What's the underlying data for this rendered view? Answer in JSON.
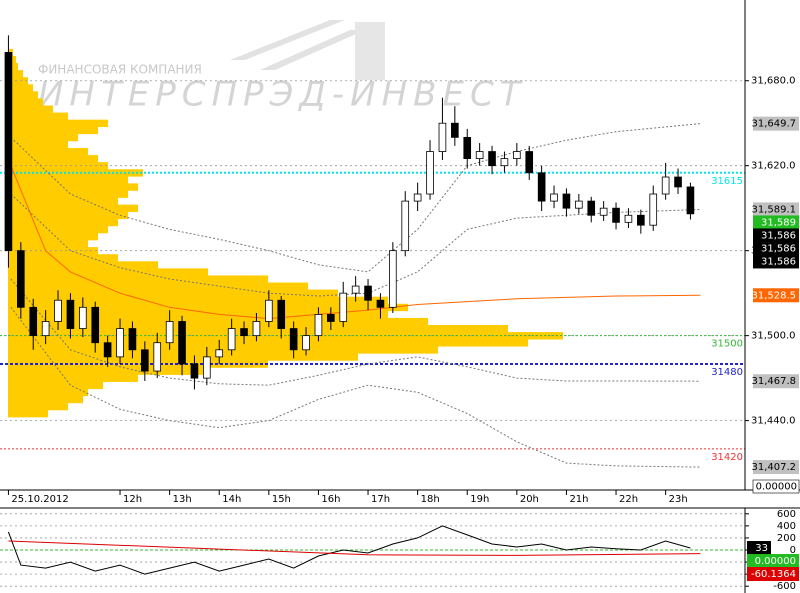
{
  "chart_data": [
    {
      "type": "candlestick",
      "watermark": [
        "ФИНАНСОВАЯ КОМПАНИЯ",
        "ИНТЕРСПРЭД-ИНВЕСТ"
      ],
      "xlim": [
        9.58,
        24.6
      ],
      "xticks": [
        {
          "value": 9.75,
          "label": "25.10.2012"
        },
        {
          "value": 12,
          "label": "12h"
        },
        {
          "value": 13,
          "label": "13h"
        },
        {
          "value": 14,
          "label": "14h"
        },
        {
          "value": 15,
          "label": "15h"
        },
        {
          "value": 16,
          "label": "16h"
        },
        {
          "value": 17,
          "label": "17h"
        },
        {
          "value": 18,
          "label": "18h"
        },
        {
          "value": 19,
          "label": "19h"
        },
        {
          "value": 20,
          "label": "20h"
        },
        {
          "value": 21,
          "label": "21h"
        },
        {
          "value": 22,
          "label": "22h"
        },
        {
          "value": 23,
          "label": "23h"
        }
      ],
      "ylim": [
        31391,
        31737
      ],
      "yticks": [
        {
          "value": 31440,
          "label": "31,440.0"
        },
        {
          "value": 31500,
          "label": "31,500.0"
        },
        {
          "value": 31560,
          "label": "31,560.0"
        },
        {
          "value": 31620,
          "label": "31,620.0"
        },
        {
          "value": 31680,
          "label": "31,680.0"
        }
      ],
      "grid": true,
      "x": [
        9.75,
        10,
        10.25,
        10.5,
        10.75,
        11,
        11.25,
        11.5,
        11.75,
        12,
        12.25,
        12.5,
        12.75,
        13,
        13.25,
        13.5,
        13.75,
        14,
        14.25,
        14.5,
        14.75,
        15,
        15.25,
        15.5,
        15.75,
        16,
        16.25,
        16.5,
        16.75,
        17,
        17.25,
        17.5,
        17.75,
        18,
        18.25,
        18.5,
        18.75,
        19,
        19.25,
        19.5,
        19.75,
        20,
        20.25,
        20.5,
        20.75,
        21,
        21.25,
        21.5,
        21.75,
        22,
        22.25,
        22.5,
        22.75,
        23,
        23.25,
        23.5
      ],
      "ohlc": [
        [
          31700,
          31712,
          31548,
          31560
        ],
        [
          31560,
          31566,
          31512,
          31520
        ],
        [
          31520,
          31526,
          31490,
          31500
        ],
        [
          31500,
          31518,
          31494,
          31510
        ],
        [
          31510,
          31532,
          31504,
          31525
        ],
        [
          31525,
          31530,
          31498,
          31505
        ],
        [
          31505,
          31527,
          31499,
          31520
        ],
        [
          31520,
          31524,
          31488,
          31495
        ],
        [
          31495,
          31500,
          31478,
          31485
        ],
        [
          31485,
          31512,
          31480,
          31505
        ],
        [
          31505,
          31510,
          31484,
          31490
        ],
        [
          31490,
          31496,
          31468,
          31475
        ],
        [
          31475,
          31502,
          31470,
          31495
        ],
        [
          31495,
          31518,
          31490,
          31510
        ],
        [
          31510,
          31514,
          31472,
          31480
        ],
        [
          31480,
          31486,
          31462,
          31470
        ],
        [
          31470,
          31492,
          31465,
          31485
        ],
        [
          31485,
          31497,
          31480,
          31490
        ],
        [
          31490,
          31512,
          31486,
          31505
        ],
        [
          31505,
          31510,
          31494,
          31500
        ],
        [
          31500,
          31516,
          31496,
          31510
        ],
        [
          31510,
          31532,
          31506,
          31525
        ],
        [
          31525,
          31528,
          31498,
          31505
        ],
        [
          31505,
          31510,
          31484,
          31490
        ],
        [
          31490,
          31506,
          31486,
          31500
        ],
        [
          31500,
          31520,
          31496,
          31515
        ],
        [
          31515,
          31520,
          31504,
          31510
        ],
        [
          31510,
          31538,
          31506,
          31530
        ],
        [
          31530,
          31542,
          31524,
          31535
        ],
        [
          31535,
          31540,
          31518,
          31525
        ],
        [
          31525,
          31530,
          31512,
          31520
        ],
        [
          31520,
          31566,
          31516,
          31560
        ],
        [
          31560,
          31602,
          31556,
          31595
        ],
        [
          31595,
          31608,
          31588,
          31600
        ],
        [
          31600,
          31638,
          31596,
          31630
        ],
        [
          31630,
          31668,
          31624,
          31650
        ],
        [
          31650,
          31662,
          31634,
          31640
        ],
        [
          31640,
          31646,
          31618,
          31625
        ],
        [
          31625,
          31636,
          31620,
          31630
        ],
        [
          31630,
          31634,
          31614,
          31620
        ],
        [
          31620,
          31630,
          31615,
          31625
        ],
        [
          31625,
          31636,
          31620,
          31630
        ],
        [
          31630,
          31634,
          31610,
          31615
        ],
        [
          31615,
          31620,
          31588,
          31595
        ],
        [
          31595,
          31606,
          31590,
          31600
        ],
        [
          31600,
          31604,
          31584,
          31590
        ],
        [
          31590,
          31600,
          31586,
          31595
        ],
        [
          31595,
          31598,
          31580,
          31585
        ],
        [
          31585,
          31595,
          31581,
          31590
        ],
        [
          31590,
          31594,
          31575,
          31580
        ],
        [
          31580,
          31590,
          31576,
          31585
        ],
        [
          31585,
          31589,
          31572,
          31578
        ],
        [
          31578,
          31606,
          31574,
          31600
        ],
        [
          31600,
          31622,
          31596,
          31612
        ],
        [
          31612,
          31618,
          31600,
          31605
        ],
        [
          31605,
          31608,
          31582,
          31586
        ]
      ],
      "up_color": "#ffffff",
      "down_color": "#000000",
      "volume_profile": {
        "color": "#ffcc00",
        "prices": [
          31445,
          31450,
          31455,
          31460,
          31465,
          31470,
          31475,
          31480,
          31485,
          31490,
          31495,
          31500,
          31505,
          31510,
          31515,
          31520,
          31525,
          31530,
          31535,
          31540,
          31545,
          31550,
          31555,
          31560,
          31565,
          31570,
          31575,
          31580,
          31585,
          31590,
          31595,
          31600,
          31605,
          31610,
          31615,
          31620,
          31625,
          31630,
          31635,
          31640,
          31645,
          31650,
          31655,
          31660,
          31665,
          31670,
          31675,
          31680,
          31685,
          31690,
          31695,
          31700
        ],
        "volumes": [
          40,
          60,
          75,
          80,
          95,
          130,
          200,
          260,
          350,
          430,
          520,
          555,
          500,
          420,
          380,
          400,
          380,
          330,
          300,
          260,
          200,
          150,
          110,
          90,
          80,
          90,
          100,
          110,
          120,
          130,
          110,
          120,
          130,
          120,
          135,
          100,
          90,
          80,
          60,
          70,
          90,
          100,
          60,
          45,
          35,
          30,
          25,
          20,
          15,
          10,
          8,
          5
        ]
      },
      "series": [
        {
          "color": "#ff6600",
          "dash": false,
          "x": [
            9.8,
            10.5,
            11,
            12,
            13,
            14,
            15,
            16,
            17,
            18,
            19,
            20,
            21,
            22,
            23.7
          ],
          "values": [
            31620,
            31560,
            31545,
            31530,
            31520,
            31515,
            31512,
            31515,
            31518,
            31522,
            31524,
            31526,
            31527,
            31528,
            31528.5
          ]
        },
        {
          "color": "#777777",
          "dash": true,
          "x": [
            9.8,
            11,
            12,
            13,
            14,
            15,
            16,
            17,
            18,
            19,
            20,
            21,
            22,
            23.7
          ],
          "values": [
            31640,
            31600,
            31585,
            31575,
            31568,
            31560,
            31550,
            31545,
            31575,
            31620,
            31630,
            31638,
            31644,
            31649.7
          ]
        },
        {
          "color": "#777777",
          "dash": true,
          "x": [
            9.8,
            11,
            12,
            13,
            14,
            15,
            16,
            17,
            18,
            19,
            20,
            21,
            22,
            23.7
          ],
          "values": [
            31600,
            31560,
            31548,
            31540,
            31535,
            31530,
            31528,
            31530,
            31545,
            31575,
            31583,
            31585,
            31587,
            31589.1
          ]
        },
        {
          "color": "#777777",
          "dash": true,
          "x": [
            9.8,
            11,
            12,
            13,
            14,
            15,
            16,
            17,
            18,
            19,
            20,
            21,
            22,
            23.7
          ],
          "values": [
            31540,
            31490,
            31478,
            31470,
            31466,
            31465,
            31472,
            31480,
            31485,
            31478,
            31470,
            31468,
            31468,
            31467.8
          ]
        },
        {
          "color": "#777777",
          "dash": true,
          "x": [
            9.8,
            11,
            12,
            13,
            14,
            15,
            16,
            17,
            18,
            19,
            20,
            21,
            22,
            23.7
          ],
          "values": [
            31520,
            31465,
            31448,
            31440,
            31435,
            31440,
            31455,
            31465,
            31460,
            31445,
            31425,
            31410,
            31408,
            31407.2
          ]
        }
      ],
      "levels": [
        {
          "value": 31615,
          "label": "31615",
          "color": "#00e5ee"
        },
        {
          "value": 31500,
          "label": "31500",
          "color": "#33bb33"
        },
        {
          "value": 31480,
          "label": "31480",
          "color": "#2222cc"
        },
        {
          "value": 31420,
          "label": "31420",
          "color": "#ee3333"
        }
      ],
      "price_tags": [
        {
          "value": 31649.7,
          "label": "31,649.7",
          "color": "#c0c0c0"
        },
        {
          "value": 31589.1,
          "label": "31,589.1",
          "color": "#c0c0c0"
        },
        {
          "value": 31589,
          "label": "31,589",
          "color": "#22bb22"
        },
        {
          "value": 31586,
          "label": "31,586",
          "color": "#000000"
        },
        {
          "value": 31586,
          "label": "31,586",
          "color": "#000000"
        },
        {
          "value": 31586,
          "label": "31,586",
          "color": "#000000"
        },
        {
          "value": 31528.5,
          "label": "31,528.5",
          "color": "#ff6600"
        },
        {
          "value": 31467.8,
          "label": "31,467.8",
          "color": "#c0c0c0"
        },
        {
          "value": 31407.2,
          "label": "31,407.2",
          "color": "#c0c0c0"
        }
      ],
      "readout": "0.00000"
    },
    {
      "type": "line",
      "xlim": [
        9.58,
        24.6
      ],
      "ylim": [
        -630,
        630
      ],
      "yticks": [
        600,
        400,
        200,
        0,
        -200,
        -400,
        -600
      ],
      "grid": true,
      "zero_line_color": "#33bb33",
      "series": [
        {
          "color": "#000000",
          "x": [
            9.75,
            10,
            10.5,
            11,
            11.5,
            12,
            12.5,
            13,
            13.5,
            14,
            14.5,
            15,
            15.5,
            16,
            16.5,
            17,
            17.5,
            18,
            18.5,
            19,
            19.5,
            20,
            20.5,
            21,
            21.5,
            22,
            22.5,
            23,
            23.5
          ],
          "values": [
            300,
            -250,
            -300,
            -200,
            -350,
            -250,
            -400,
            -300,
            -200,
            -350,
            -250,
            -150,
            -300,
            -100,
            0,
            -50,
            100,
            200,
            400,
            250,
            100,
            50,
            100,
            0,
            50,
            20,
            0,
            150,
            33
          ]
        },
        {
          "color": "#dd0000",
          "x": [
            9.75,
            17,
            20,
            23.7
          ],
          "values": [
            150,
            -80,
            -90,
            -60.1364
          ]
        }
      ],
      "tags": [
        {
          "value": 33,
          "label": "33",
          "color": "#000000"
        },
        {
          "value": 0,
          "label": "0.00000",
          "color": "#22bb22"
        },
        {
          "value": -60.1364,
          "label": "-60.1364",
          "color": "#dd0000"
        }
      ]
    }
  ]
}
